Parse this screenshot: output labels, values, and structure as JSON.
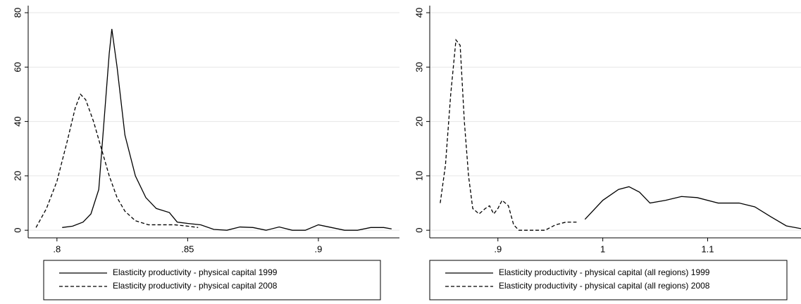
{
  "chart_data": [
    {
      "type": "line",
      "xlim": [
        0.789,
        0.931
      ],
      "ylim": [
        -2.8,
        82.6
      ],
      "xticks": [
        {
          "value": 0.8,
          "label": ".8"
        },
        {
          "value": 0.85,
          "label": ".85"
        },
        {
          "value": 0.9,
          "label": ".9"
        }
      ],
      "yticks": [
        0,
        20,
        40,
        60,
        80
      ],
      "grid": true,
      "series": [
        {
          "name": "Elasticity productivity - physical capital 1999",
          "color": "#000000",
          "dash": "solid",
          "x": [
            0.802,
            0.806,
            0.81,
            0.813,
            0.816,
            0.818,
            0.82,
            0.821,
            0.823,
            0.826,
            0.83,
            0.834,
            0.838,
            0.843,
            0.846,
            0.85,
            0.855,
            0.86,
            0.865,
            0.87,
            0.875,
            0.88,
            0.885,
            0.89,
            0.895,
            0.9,
            0.905,
            0.91,
            0.915,
            0.92,
            0.925,
            0.928
          ],
          "values": [
            1,
            1.5,
            3,
            6,
            15,
            40,
            65,
            74,
            60,
            35,
            20,
            12,
            8,
            6.5,
            3,
            2.5,
            2,
            0.3,
            0,
            1.2,
            1,
            0,
            1.2,
            0,
            0,
            2,
            1,
            0,
            0,
            1,
            1,
            0.5
          ]
        },
        {
          "name": "Elasticity productivity - physical capital 2008",
          "color": "#000000",
          "dash": "dashed",
          "x": [
            0.792,
            0.796,
            0.8,
            0.804,
            0.807,
            0.809,
            0.811,
            0.814,
            0.817,
            0.82,
            0.823,
            0.826,
            0.83,
            0.835,
            0.84,
            0.845,
            0.85,
            0.854
          ],
          "values": [
            1,
            8,
            18,
            33,
            45,
            50,
            48,
            40,
            30,
            20,
            12,
            7,
            3.5,
            2,
            2,
            2,
            1.5,
            1
          ]
        }
      ]
    },
    {
      "type": "line",
      "xlim": [
        0.835,
        1.189
      ],
      "ylim": [
        -1.4,
        41.3
      ],
      "xticks": [
        {
          "value": 0.9,
          "label": ".9"
        },
        1,
        1.1
      ],
      "yticks": [
        0,
        10,
        20,
        30,
        40
      ],
      "grid": true,
      "series": [
        {
          "name": "Elasticity productivity - physical capital (all regions) 1999",
          "color": "#000000",
          "dash": "solid",
          "x": [
            0.983,
            1,
            1.015,
            1.025,
            1.035,
            1.045,
            1.06,
            1.075,
            1.09,
            1.11,
            1.13,
            1.145,
            1.16,
            1.175,
            1.189
          ],
          "values": [
            2,
            5.5,
            7.5,
            8,
            7,
            5,
            5.5,
            6.2,
            6,
            5,
            5,
            4.3,
            2.5,
            0.8,
            0.3
          ]
        },
        {
          "name": "Elasticity productivity - physical capital (all regions) 2008",
          "color": "#000000",
          "dash": "dashed",
          "x": [
            0.845,
            0.85,
            0.855,
            0.86,
            0.864,
            0.868,
            0.872,
            0.876,
            0.882,
            0.888,
            0.892,
            0.896,
            0.9,
            0.904,
            0.91,
            0.915,
            0.92,
            0.93,
            0.945,
            0.955,
            0.965,
            0.975
          ],
          "values": [
            5,
            12,
            25,
            35,
            34,
            20,
            10,
            4,
            3,
            4,
            4.5,
            3,
            4,
            5.5,
            4.5,
            1,
            0,
            0,
            0,
            1,
            1.5,
            1.5
          ]
        }
      ]
    }
  ]
}
